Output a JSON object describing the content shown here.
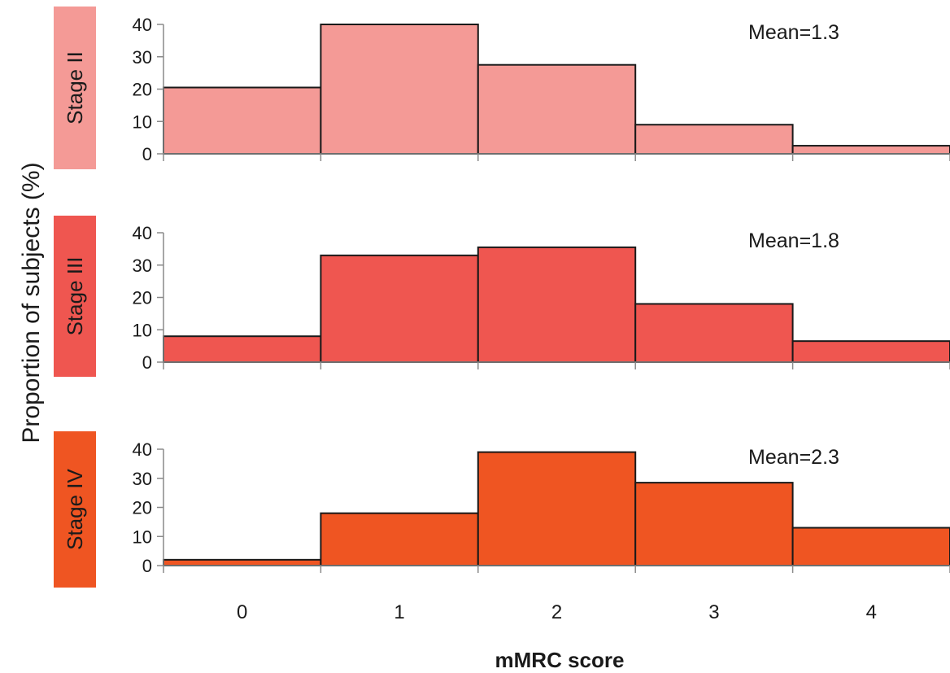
{
  "chart_data": {
    "type": "bar",
    "subtype": "histogram-panels",
    "xlabel": "mMRC score",
    "ylabel": "Proportion of subjects (%)",
    "categories": [
      "0",
      "1",
      "2",
      "3",
      "4"
    ],
    "ylim": [
      0,
      40
    ],
    "yticks": [
      "0",
      "10",
      "20",
      "30",
      "40"
    ],
    "grid": false,
    "panels": [
      {
        "name": "Stage II",
        "mean_label": "Mean=1.3",
        "color": "#f49a96",
        "values": [
          20.5,
          40,
          27.5,
          9,
          2.5
        ]
      },
      {
        "name": "Stage III",
        "mean_label": "Mean=1.8",
        "color": "#ef5650",
        "values": [
          8,
          33,
          35.5,
          18,
          6.5
        ]
      },
      {
        "name": "Stage IV",
        "mean_label": "Mean=2.3",
        "color": "#ef5522",
        "values": [
          2,
          18,
          39,
          28.5,
          13
        ]
      }
    ]
  }
}
